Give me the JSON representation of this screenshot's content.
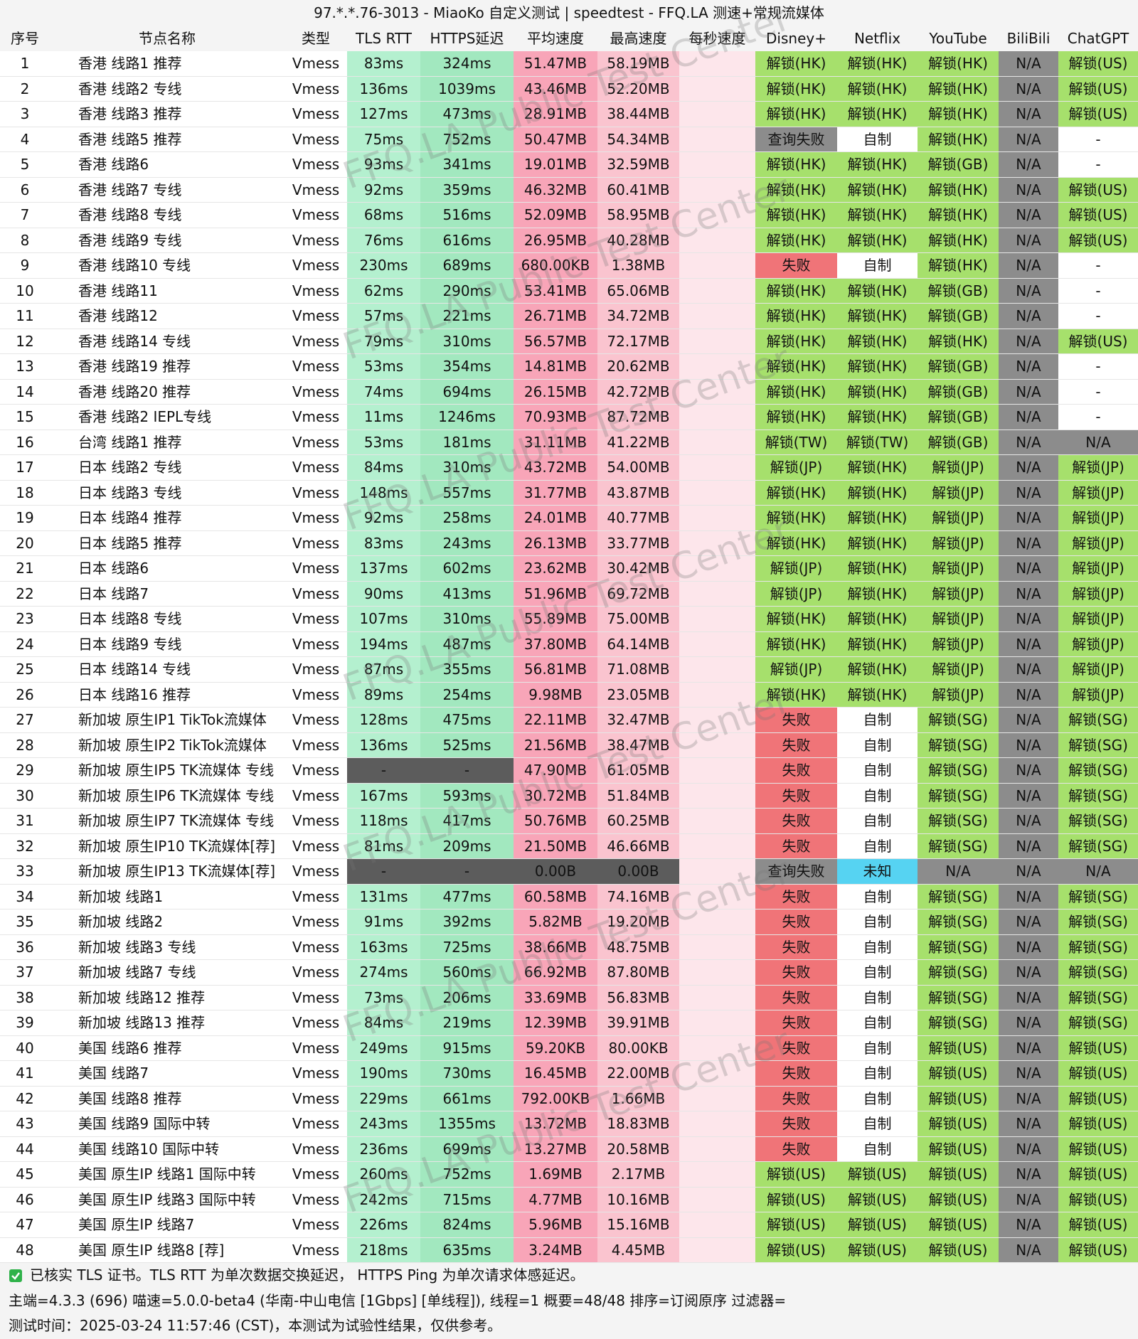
{
  "title": "97.*.*.76-3013 - MiaoKo 自定义测试 | speedtest - FFQ.LA 测速+常规流媒体",
  "watermark": "FFQ.LA Public Test Center",
  "columns": [
    "序号",
    "节点名称",
    "类型",
    "TLS RTT",
    "HTTPS延迟",
    "平均速度",
    "最高速度",
    "每秒速度",
    "Disney+",
    "Netflix",
    "YouTube",
    "BiliBili",
    "ChatGPT"
  ],
  "cell_colors": [
    {
      "default": "#ffffff"
    },
    {
      "default": "#ffffff"
    },
    {
      "default": "#ffffff"
    },
    {
      "default": "#b4f0cf",
      "by_text": {
        "-": "#5c5c5c"
      }
    },
    {
      "default": "#a2e8bf",
      "by_text": {
        "-": "#5c5c5c"
      }
    },
    {
      "default": "#f8a5b8",
      "by_text": {
        "0.00B": "#5c5c5c"
      }
    },
    {
      "default": "#fac4cf",
      "by_text": {
        "0.00B": "#5c5c5c"
      }
    },
    {
      "default": "#fde6eb"
    },
    {
      "default": "#a6e06c",
      "by_text": {
        "失败": "#f07478",
        "查询失败": "#8c8c8c",
        "N/A": "#8c8c8c",
        "自制": "#ffffff",
        "-": "#ffffff",
        "未知": "#56d3f2"
      }
    },
    {
      "default": "#a6e06c",
      "by_text": {
        "失败": "#f07478",
        "查询失败": "#8c8c8c",
        "N/A": "#8c8c8c",
        "自制": "#ffffff",
        "-": "#ffffff",
        "未知": "#56d3f2"
      }
    },
    {
      "default": "#a6e06c",
      "by_text": {
        "失败": "#f07478",
        "查询失败": "#8c8c8c",
        "N/A": "#8c8c8c",
        "自制": "#ffffff",
        "-": "#ffffff",
        "未知": "#56d3f2"
      }
    },
    {
      "default": "#a6e06c",
      "by_text": {
        "失败": "#f07478",
        "查询失败": "#8c8c8c",
        "N/A": "#8c8c8c",
        "自制": "#ffffff",
        "-": "#ffffff",
        "未知": "#56d3f2"
      }
    },
    {
      "default": "#a6e06c",
      "by_text": {
        "失败": "#f07478",
        "查询失败": "#8c8c8c",
        "N/A": "#8c8c8c",
        "自制": "#ffffff",
        "-": "#ffffff",
        "未知": "#56d3f2"
      }
    }
  ],
  "rows": [
    [
      "1",
      "香港 线路1 推荐",
      "Vmess",
      "83ms",
      "324ms",
      "51.47MB",
      "58.19MB",
      "解锁(HK)",
      "解锁(HK)",
      "解锁(HK)",
      "N/A",
      "解锁(US)"
    ],
    [
      "2",
      "香港 线路2 专线",
      "Vmess",
      "136ms",
      "1039ms",
      "43.46MB",
      "52.20MB",
      "解锁(HK)",
      "解锁(HK)",
      "解锁(HK)",
      "N/A",
      "解锁(US)"
    ],
    [
      "3",
      "香港 线路3 推荐",
      "Vmess",
      "127ms",
      "473ms",
      "28.91MB",
      "38.44MB",
      "解锁(HK)",
      "解锁(HK)",
      "解锁(HK)",
      "N/A",
      "解锁(US)"
    ],
    [
      "4",
      "香港 线路5 推荐",
      "Vmess",
      "75ms",
      "752ms",
      "50.47MB",
      "54.34MB",
      "查询失败",
      "自制",
      "解锁(HK)",
      "N/A",
      "-"
    ],
    [
      "5",
      "香港 线路6",
      "Vmess",
      "93ms",
      "341ms",
      "19.01MB",
      "32.59MB",
      "解锁(HK)",
      "解锁(HK)",
      "解锁(GB)",
      "N/A",
      "-"
    ],
    [
      "6",
      "香港 线路7 专线",
      "Vmess",
      "92ms",
      "359ms",
      "46.32MB",
      "60.41MB",
      "解锁(HK)",
      "解锁(HK)",
      "解锁(HK)",
      "N/A",
      "解锁(US)"
    ],
    [
      "7",
      "香港 线路8 专线",
      "Vmess",
      "68ms",
      "516ms",
      "52.09MB",
      "58.95MB",
      "解锁(HK)",
      "解锁(HK)",
      "解锁(HK)",
      "N/A",
      "解锁(US)"
    ],
    [
      "8",
      "香港 线路9 专线",
      "Vmess",
      "76ms",
      "616ms",
      "26.95MB",
      "40.28MB",
      "解锁(HK)",
      "解锁(HK)",
      "解锁(HK)",
      "N/A",
      "解锁(US)"
    ],
    [
      "9",
      "香港 线路10 专线",
      "Vmess",
      "230ms",
      "689ms",
      "680.00KB",
      "1.38MB",
      "失败",
      "自制",
      "解锁(HK)",
      "N/A",
      "-"
    ],
    [
      "10",
      "香港 线路11",
      "Vmess",
      "62ms",
      "290ms",
      "53.41MB",
      "65.06MB",
      "解锁(HK)",
      "解锁(HK)",
      "解锁(GB)",
      "N/A",
      "-"
    ],
    [
      "11",
      "香港 线路12",
      "Vmess",
      "57ms",
      "221ms",
      "26.71MB",
      "34.72MB",
      "解锁(HK)",
      "解锁(HK)",
      "解锁(GB)",
      "N/A",
      "-"
    ],
    [
      "12",
      "香港 线路14 专线",
      "Vmess",
      "79ms",
      "310ms",
      "56.57MB",
      "72.17MB",
      "解锁(HK)",
      "解锁(HK)",
      "解锁(HK)",
      "N/A",
      "解锁(US)"
    ],
    [
      "13",
      "香港 线路19 推荐",
      "Vmess",
      "53ms",
      "354ms",
      "14.81MB",
      "20.62MB",
      "解锁(HK)",
      "解锁(HK)",
      "解锁(GB)",
      "N/A",
      "-"
    ],
    [
      "14",
      "香港 线路20 推荐",
      "Vmess",
      "74ms",
      "694ms",
      "26.15MB",
      "42.72MB",
      "解锁(HK)",
      "解锁(HK)",
      "解锁(GB)",
      "N/A",
      "-"
    ],
    [
      "15",
      "香港 线路2 IEPL专线",
      "Vmess",
      "11ms",
      "1246ms",
      "70.93MB",
      "87.72MB",
      "解锁(HK)",
      "解锁(HK)",
      "解锁(GB)",
      "N/A",
      "-"
    ],
    [
      "16",
      "台湾 线路1 推荐",
      "Vmess",
      "53ms",
      "181ms",
      "31.11MB",
      "41.22MB",
      "解锁(TW)",
      "解锁(TW)",
      "解锁(GB)",
      "N/A",
      "N/A"
    ],
    [
      "17",
      "日本 线路2 专线",
      "Vmess",
      "84ms",
      "310ms",
      "43.72MB",
      "54.00MB",
      "解锁(JP)",
      "解锁(HK)",
      "解锁(JP)",
      "N/A",
      "解锁(JP)"
    ],
    [
      "18",
      "日本 线路3 专线",
      "Vmess",
      "148ms",
      "557ms",
      "31.77MB",
      "43.87MB",
      "解锁(HK)",
      "解锁(HK)",
      "解锁(JP)",
      "N/A",
      "解锁(JP)"
    ],
    [
      "19",
      "日本 线路4 推荐",
      "Vmess",
      "92ms",
      "258ms",
      "24.01MB",
      "40.77MB",
      "解锁(HK)",
      "解锁(HK)",
      "解锁(JP)",
      "N/A",
      "解锁(JP)"
    ],
    [
      "20",
      "日本 线路5 推荐",
      "Vmess",
      "83ms",
      "243ms",
      "26.13MB",
      "33.77MB",
      "解锁(HK)",
      "解锁(HK)",
      "解锁(JP)",
      "N/A",
      "解锁(JP)"
    ],
    [
      "21",
      "日本 线路6",
      "Vmess",
      "137ms",
      "602ms",
      "23.62MB",
      "30.42MB",
      "解锁(JP)",
      "解锁(HK)",
      "解锁(JP)",
      "N/A",
      "解锁(JP)"
    ],
    [
      "22",
      "日本 线路7",
      "Vmess",
      "90ms",
      "413ms",
      "51.96MB",
      "69.72MB",
      "解锁(JP)",
      "解锁(HK)",
      "解锁(JP)",
      "N/A",
      "解锁(JP)"
    ],
    [
      "23",
      "日本 线路8 专线",
      "Vmess",
      "107ms",
      "310ms",
      "55.89MB",
      "75.00MB",
      "解锁(HK)",
      "解锁(HK)",
      "解锁(JP)",
      "N/A",
      "解锁(JP)"
    ],
    [
      "24",
      "日本 线路9 专线",
      "Vmess",
      "194ms",
      "487ms",
      "37.80MB",
      "64.14MB",
      "解锁(HK)",
      "解锁(HK)",
      "解锁(JP)",
      "N/A",
      "解锁(JP)"
    ],
    [
      "25",
      "日本 线路14 专线",
      "Vmess",
      "87ms",
      "355ms",
      "56.81MB",
      "71.08MB",
      "解锁(JP)",
      "解锁(HK)",
      "解锁(JP)",
      "N/A",
      "解锁(JP)"
    ],
    [
      "26",
      "日本 线路16 推荐",
      "Vmess",
      "89ms",
      "254ms",
      "9.98MB",
      "23.05MB",
      "解锁(HK)",
      "解锁(HK)",
      "解锁(JP)",
      "N/A",
      "解锁(JP)"
    ],
    [
      "27",
      "新加坡 原生IP1 TikTok流媒体",
      "Vmess",
      "128ms",
      "475ms",
      "22.11MB",
      "32.47MB",
      "失败",
      "自制",
      "解锁(SG)",
      "N/A",
      "解锁(SG)"
    ],
    [
      "28",
      "新加坡 原生IP2 TikTok流媒体",
      "Vmess",
      "136ms",
      "525ms",
      "21.56MB",
      "38.47MB",
      "失败",
      "自制",
      "解锁(SG)",
      "N/A",
      "解锁(SG)"
    ],
    [
      "29",
      "新加坡 原生IP5 TK流媒体 专线",
      "Vmess",
      "-",
      "-",
      "47.90MB",
      "61.05MB",
      "失败",
      "自制",
      "解锁(SG)",
      "N/A",
      "解锁(SG)"
    ],
    [
      "30",
      "新加坡 原生IP6 TK流媒体 专线",
      "Vmess",
      "167ms",
      "593ms",
      "30.72MB",
      "51.84MB",
      "失败",
      "自制",
      "解锁(SG)",
      "N/A",
      "解锁(SG)"
    ],
    [
      "31",
      "新加坡 原生IP7 TK流媒体 专线",
      "Vmess",
      "118ms",
      "417ms",
      "50.76MB",
      "60.25MB",
      "失败",
      "自制",
      "解锁(SG)",
      "N/A",
      "解锁(SG)"
    ],
    [
      "32",
      "新加坡 原生IP10 TK流媒体[荐]",
      "Vmess",
      "81ms",
      "209ms",
      "21.50MB",
      "46.66MB",
      "失败",
      "自制",
      "解锁(SG)",
      "N/A",
      "解锁(SG)"
    ],
    [
      "33",
      "新加坡 原生IP13 TK流媒体[荐]",
      "Vmess",
      "-",
      "-",
      "0.00B",
      "0.00B",
      "查询失败",
      "未知",
      "N/A",
      "N/A",
      "N/A"
    ],
    [
      "34",
      "新加坡 线路1",
      "Vmess",
      "131ms",
      "477ms",
      "60.58MB",
      "74.16MB",
      "失败",
      "自制",
      "解锁(SG)",
      "N/A",
      "解锁(SG)"
    ],
    [
      "35",
      "新加坡 线路2",
      "Vmess",
      "91ms",
      "392ms",
      "5.82MB",
      "19.20MB",
      "失败",
      "自制",
      "解锁(SG)",
      "N/A",
      "解锁(SG)"
    ],
    [
      "36",
      "新加坡 线路3 专线",
      "Vmess",
      "163ms",
      "725ms",
      "38.66MB",
      "48.75MB",
      "失败",
      "自制",
      "解锁(SG)",
      "N/A",
      "解锁(SG)"
    ],
    [
      "37",
      "新加坡 线路7 专线",
      "Vmess",
      "274ms",
      "560ms",
      "66.92MB",
      "87.80MB",
      "失败",
      "自制",
      "解锁(SG)",
      "N/A",
      "解锁(SG)"
    ],
    [
      "38",
      "新加坡 线路12 推荐",
      "Vmess",
      "73ms",
      "206ms",
      "33.69MB",
      "56.83MB",
      "失败",
      "自制",
      "解锁(SG)",
      "N/A",
      "解锁(SG)"
    ],
    [
      "39",
      "新加坡 线路13 推荐",
      "Vmess",
      "84ms",
      "219ms",
      "12.39MB",
      "39.91MB",
      "失败",
      "自制",
      "解锁(SG)",
      "N/A",
      "解锁(SG)"
    ],
    [
      "40",
      "美国 线路6 推荐",
      "Vmess",
      "249ms",
      "915ms",
      "59.20KB",
      "80.00KB",
      "失败",
      "自制",
      "解锁(US)",
      "N/A",
      "解锁(US)"
    ],
    [
      "41",
      "美国 线路7",
      "Vmess",
      "190ms",
      "730ms",
      "16.45MB",
      "22.00MB",
      "失败",
      "自制",
      "解锁(US)",
      "N/A",
      "解锁(US)"
    ],
    [
      "42",
      "美国 线路8 推荐",
      "Vmess",
      "229ms",
      "661ms",
      "792.00KB",
      "1.66MB",
      "失败",
      "自制",
      "解锁(US)",
      "N/A",
      "解锁(US)"
    ],
    [
      "43",
      "美国 线路9 国际中转",
      "Vmess",
      "243ms",
      "1355ms",
      "13.72MB",
      "18.83MB",
      "失败",
      "自制",
      "解锁(US)",
      "N/A",
      "解锁(US)"
    ],
    [
      "44",
      "美国 线路10 国际中转",
      "Vmess",
      "236ms",
      "699ms",
      "13.27MB",
      "20.58MB",
      "失败",
      "自制",
      "解锁(US)",
      "N/A",
      "解锁(US)"
    ],
    [
      "45",
      "美国 原生IP 线路1 国际中转",
      "Vmess",
      "260ms",
      "752ms",
      "1.69MB",
      "2.17MB",
      "解锁(US)",
      "解锁(US)",
      "解锁(US)",
      "N/A",
      "解锁(US)"
    ],
    [
      "46",
      "美国 原生IP 线路3 国际中转",
      "Vmess",
      "242ms",
      "715ms",
      "4.77MB",
      "10.16MB",
      "解锁(US)",
      "解锁(US)",
      "解锁(US)",
      "N/A",
      "解锁(US)"
    ],
    [
      "47",
      "美国 原生IP 线路7",
      "Vmess",
      "226ms",
      "824ms",
      "5.96MB",
      "15.16MB",
      "解锁(US)",
      "解锁(US)",
      "解锁(US)",
      "N/A",
      "解锁(US)"
    ],
    [
      "48",
      "美国 原生IP 线路8 [荐]",
      "Vmess",
      "218ms",
      "635ms",
      "3.24MB",
      "4.45MB",
      "解锁(US)",
      "解锁(US)",
      "解锁(US)",
      "N/A",
      "解锁(US)"
    ]
  ],
  "footer": [
    "已核实 TLS 证书。TLS RTT 为单次数据交换延迟， HTTPS Ping 为单次请求体感延迟。",
    "主端=4.3.3 (696) 喵速=5.0.0-beta4 (华南-中山电信 [1Gbps] [单线程]), 线程=1 概要=48/48 排序=订阅原序 过滤器=",
    "测试时间：2025-03-24 11:57:46 (CST)，本测试为试验性结果，仅供参考。"
  ]
}
